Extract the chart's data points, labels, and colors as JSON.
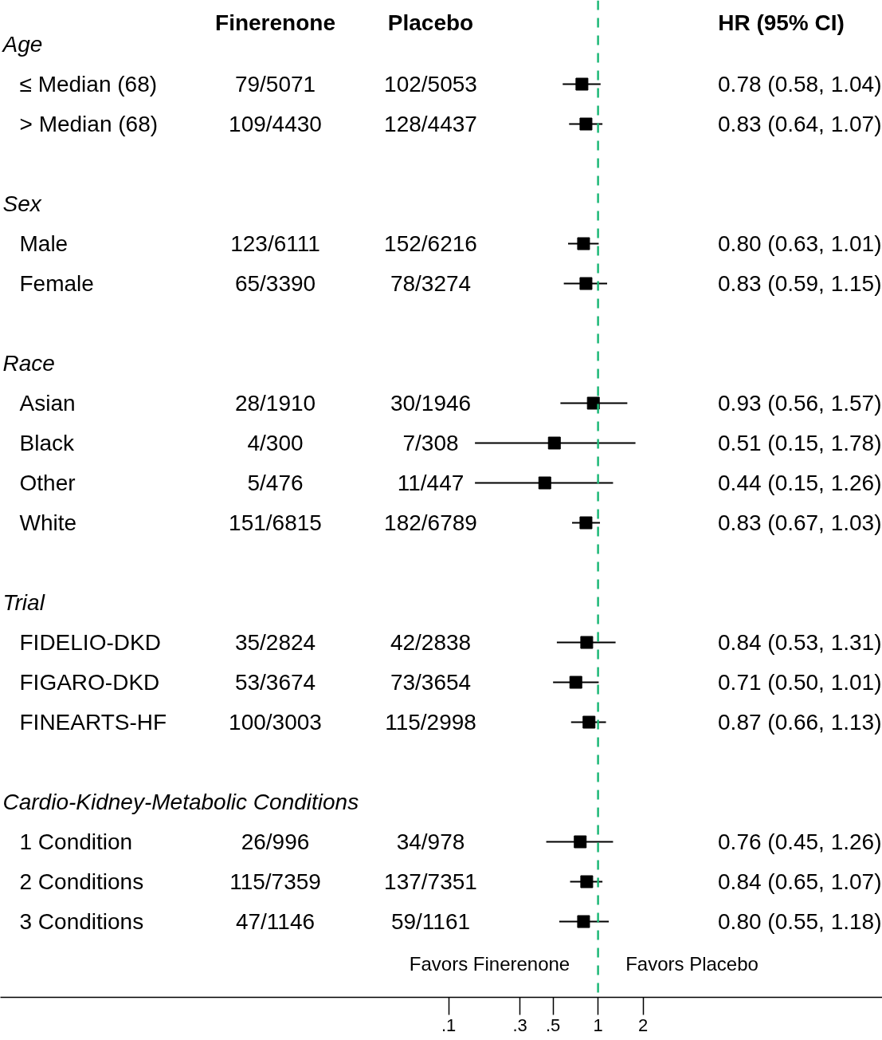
{
  "chart_data": {
    "type": "scatter",
    "orientation": "horizontal",
    "log": "x",
    "marker": "square",
    "grid": false,
    "tick_labels": "x",
    "categories": [
      "Age",
      "≤ Median (68)",
      "> Median (68)",
      null,
      "Sex",
      "Male",
      "Female",
      null,
      "Race",
      "Asian",
      "Black",
      "Other",
      "White",
      null,
      "Trial",
      "FIDELIO-DKD",
      "FIGARO-DKD",
      "FINEARTS-HF",
      null,
      "Cardio-Kidney-Metabolic Conditions",
      "1 Condition",
      "2 Conditions",
      "3 Conditions"
    ],
    "series": [
      {
        "color": "#000000",
        "values": [
          null,
          0.78,
          0.83,
          null,
          null,
          0.8,
          0.83,
          null,
          null,
          0.93,
          0.51,
          0.44,
          0.83,
          null,
          null,
          0.84,
          0.71,
          0.87,
          null,
          null,
          0.76,
          0.84,
          0.8
        ],
        "errors": [
          null,
          [
            0.58,
            1.04
          ],
          [
            0.64,
            1.07
          ],
          null,
          null,
          [
            0.63,
            1.01
          ],
          [
            0.59,
            1.15
          ],
          null,
          null,
          [
            0.56,
            1.57
          ],
          [
            0.15,
            1.78
          ],
          [
            0.15,
            1.26
          ],
          [
            0.67,
            1.03
          ],
          null,
          null,
          [
            0.53,
            1.31
          ],
          [
            0.5,
            1.01
          ],
          [
            0.66,
            1.13
          ],
          null,
          null,
          [
            0.45,
            1.26
          ],
          [
            0.65,
            1.07
          ],
          [
            0.55,
            1.18
          ]
        ]
      }
    ],
    "xlim": [
      0.0001,
      80
    ],
    "xticks": [
      {
        "value": 0.1,
        "label": ".1"
      },
      {
        "value": 0.3,
        "label": ".3"
      },
      {
        "value": 0.5,
        "label": ".5"
      },
      1,
      2
    ],
    "ref_lines": [
      {
        "axis": "x",
        "value": 1,
        "color": "#1db877",
        "line_style": "dashed"
      }
    ],
    "annotations": [
      "Finerenone",
      "Placebo",
      "HR (95% CI)",
      "Favors Finerenone",
      "Favors Placebo",
      "79/5071",
      "102/5053",
      "0.78 (0.58, 1.04)",
      "109/4430",
      "128/4437",
      "0.83 (0.64, 1.07)",
      "123/6111",
      "152/6216",
      "0.80 (0.63, 1.01)",
      "65/3390",
      "78/3274",
      "0.83 (0.59, 1.15)",
      "28/1910",
      "30/1946",
      "0.93 (0.56, 1.57)",
      "4/300",
      "7/308",
      "0.51 (0.15, 1.78)",
      "5/476",
      "11/447",
      "0.44 (0.15, 1.26)",
      "151/6815",
      "182/6789",
      "0.83 (0.67, 1.03)",
      "35/2824",
      "42/2838",
      "0.84 (0.53, 1.31)",
      "53/3674",
      "73/3654",
      "0.71 (0.50, 1.01)",
      "100/3003",
      "115/2998",
      "0.87 (0.66, 1.13)",
      "26/996",
      "34/978",
      "0.76 (0.45, 1.26)",
      "115/7359",
      "137/7351",
      "0.84 (0.65, 1.07)",
      "47/1146",
      "59/1161",
      "0.80 (0.55, 1.18)"
    ]
  }
}
